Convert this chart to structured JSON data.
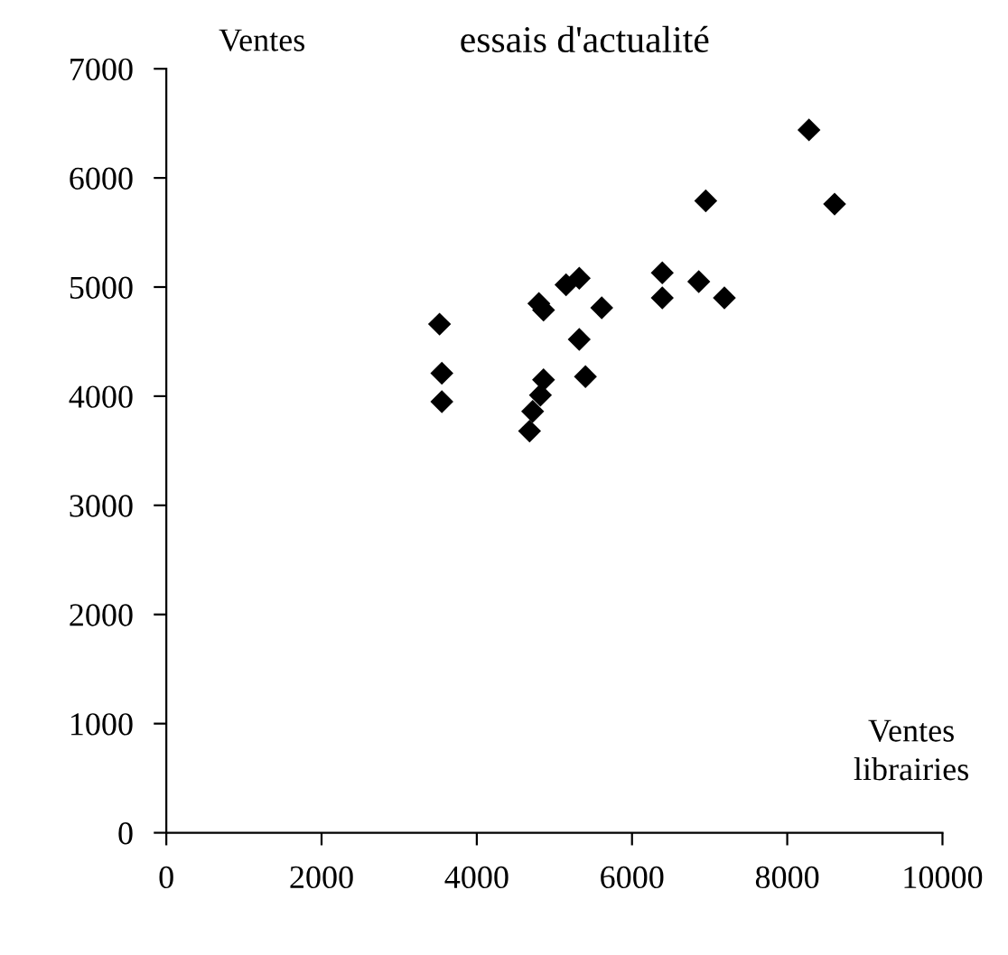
{
  "chart_data": {
    "type": "scatter",
    "title": "essais d'actualité",
    "ylabel": "Ventes",
    "xlabel": "Ventes\nlibrairies",
    "x": [
      3520,
      3550,
      3550,
      4680,
      4720,
      4820,
      4860,
      4800,
      4860,
      5150,
      5320,
      5320,
      5400,
      5610,
      6390,
      6390,
      6860,
      6950,
      7190,
      8280,
      8610
    ],
    "series": [
      {
        "color": "#000000",
        "values": [
          4660,
          4210,
          3950,
          3680,
          3860,
          4010,
          4150,
          4850,
          4790,
          5020,
          5080,
          4520,
          4180,
          4810,
          5130,
          4900,
          5050,
          5790,
          4900,
          6440,
          5760
        ]
      }
    ],
    "marker": "diamond",
    "xlim": [
      0,
      10000
    ],
    "ylim": [
      0,
      7000
    ],
    "xticks": [
      0,
      2000,
      4000,
      6000,
      8000,
      10000
    ],
    "yticks": [
      0,
      1000,
      2000,
      3000,
      4000,
      5000,
      6000,
      7000
    ],
    "grid": false,
    "legend": false
  }
}
